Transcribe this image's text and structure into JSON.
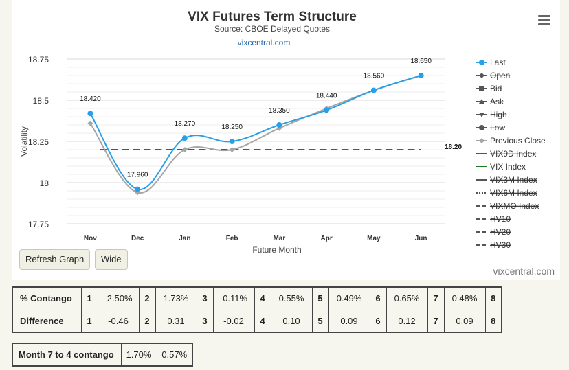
{
  "chart_data": {
    "type": "line",
    "title": "VIX Futures Term Structure",
    "subtitle": "Source: CBOE Delayed Quotes",
    "site_link": "vixcentral.com",
    "xlabel": "Future Month",
    "ylabel": "Volatility",
    "categories": [
      "Nov",
      "Dec",
      "Jan",
      "Feb",
      "Mar",
      "Apr",
      "May",
      "Jun"
    ],
    "ylim": [
      17.75,
      18.75
    ],
    "yticks": [
      "17.75",
      "18",
      "18.25",
      "18.5",
      "18.75"
    ],
    "grid": true,
    "legend_position": "right",
    "series": [
      {
        "name": "Last",
        "values": [
          18.42,
          17.96,
          18.27,
          18.25,
          18.35,
          18.44,
          18.56,
          18.65
        ],
        "labels": [
          "18.420",
          "17.960",
          "18.270",
          "18.250",
          "18.350",
          "18.440",
          "18.560",
          "18.650"
        ],
        "color": "#2b9fe6"
      },
      {
        "name": "Previous Close",
        "values": [
          18.36,
          17.94,
          18.2,
          18.2,
          18.33,
          18.45,
          18.56,
          18.65
        ],
        "color": "#a6a6a6"
      },
      {
        "name": "VIX Index",
        "values": [
          18.2,
          18.2,
          18.2,
          18.2,
          18.2,
          18.2,
          18.2,
          18.2
        ],
        "end_label": "18.20",
        "color": "#1f7a1f",
        "dashed": true
      }
    ],
    "legend": [
      {
        "name": "Last",
        "marker": "circle",
        "color": "#2b9fe6",
        "hidden": false
      },
      {
        "name": "Open",
        "marker": "diamond",
        "color": "#555555",
        "hidden": true
      },
      {
        "name": "Bid",
        "marker": "square",
        "color": "#555555",
        "hidden": true
      },
      {
        "name": "Ask",
        "marker": "triangle",
        "color": "#555555",
        "hidden": true
      },
      {
        "name": "High",
        "marker": "triangle-down",
        "color": "#555555",
        "hidden": true
      },
      {
        "name": "Low",
        "marker": "circle",
        "color": "#555555",
        "hidden": true
      },
      {
        "name": "Previous Close",
        "marker": "diamond",
        "color": "#a6a6a6",
        "hidden": false
      },
      {
        "name": "VIX9D Index",
        "marker": "line",
        "color": "#555555",
        "hidden": true
      },
      {
        "name": "VIX Index",
        "marker": "line",
        "color": "#1f7a1f",
        "hidden": false
      },
      {
        "name": "VIX3M Index",
        "marker": "line",
        "color": "#555555",
        "hidden": true
      },
      {
        "name": "VIX6M Index",
        "marker": "dotted",
        "color": "#555555",
        "hidden": true
      },
      {
        "name": "VIXMO Index",
        "marker": "dashed",
        "color": "#555555",
        "hidden": true
      },
      {
        "name": "HV10",
        "marker": "dashed",
        "color": "#555555",
        "hidden": true
      },
      {
        "name": "HV20",
        "marker": "dashed",
        "color": "#555555",
        "hidden": true
      },
      {
        "name": "HV30",
        "marker": "dashed",
        "color": "#555555",
        "hidden": true
      }
    ]
  },
  "buttons": {
    "refresh": "Refresh Graph",
    "wide": "Wide"
  },
  "credit": "vixcentral.com",
  "table": {
    "contango": {
      "label": "% Contango",
      "cells": [
        [
          "1",
          "-2.50%"
        ],
        [
          "2",
          "1.73%"
        ],
        [
          "3",
          "-0.11%"
        ],
        [
          "4",
          "0.55%"
        ],
        [
          "5",
          "0.49%"
        ],
        [
          "6",
          "0.65%"
        ],
        [
          "7",
          "0.48%"
        ],
        [
          "8",
          ""
        ]
      ]
    },
    "difference": {
      "label": "Difference",
      "cells": [
        [
          "1",
          "-0.46"
        ],
        [
          "2",
          "0.31"
        ],
        [
          "3",
          "-0.02"
        ],
        [
          "4",
          "0.10"
        ],
        [
          "5",
          "0.09"
        ],
        [
          "6",
          "0.12"
        ],
        [
          "7",
          "0.09"
        ],
        [
          "8",
          ""
        ]
      ]
    }
  },
  "summary": {
    "label": "Month 7 to 4 contango",
    "value1": "1.70%",
    "value2": "0.57%"
  }
}
